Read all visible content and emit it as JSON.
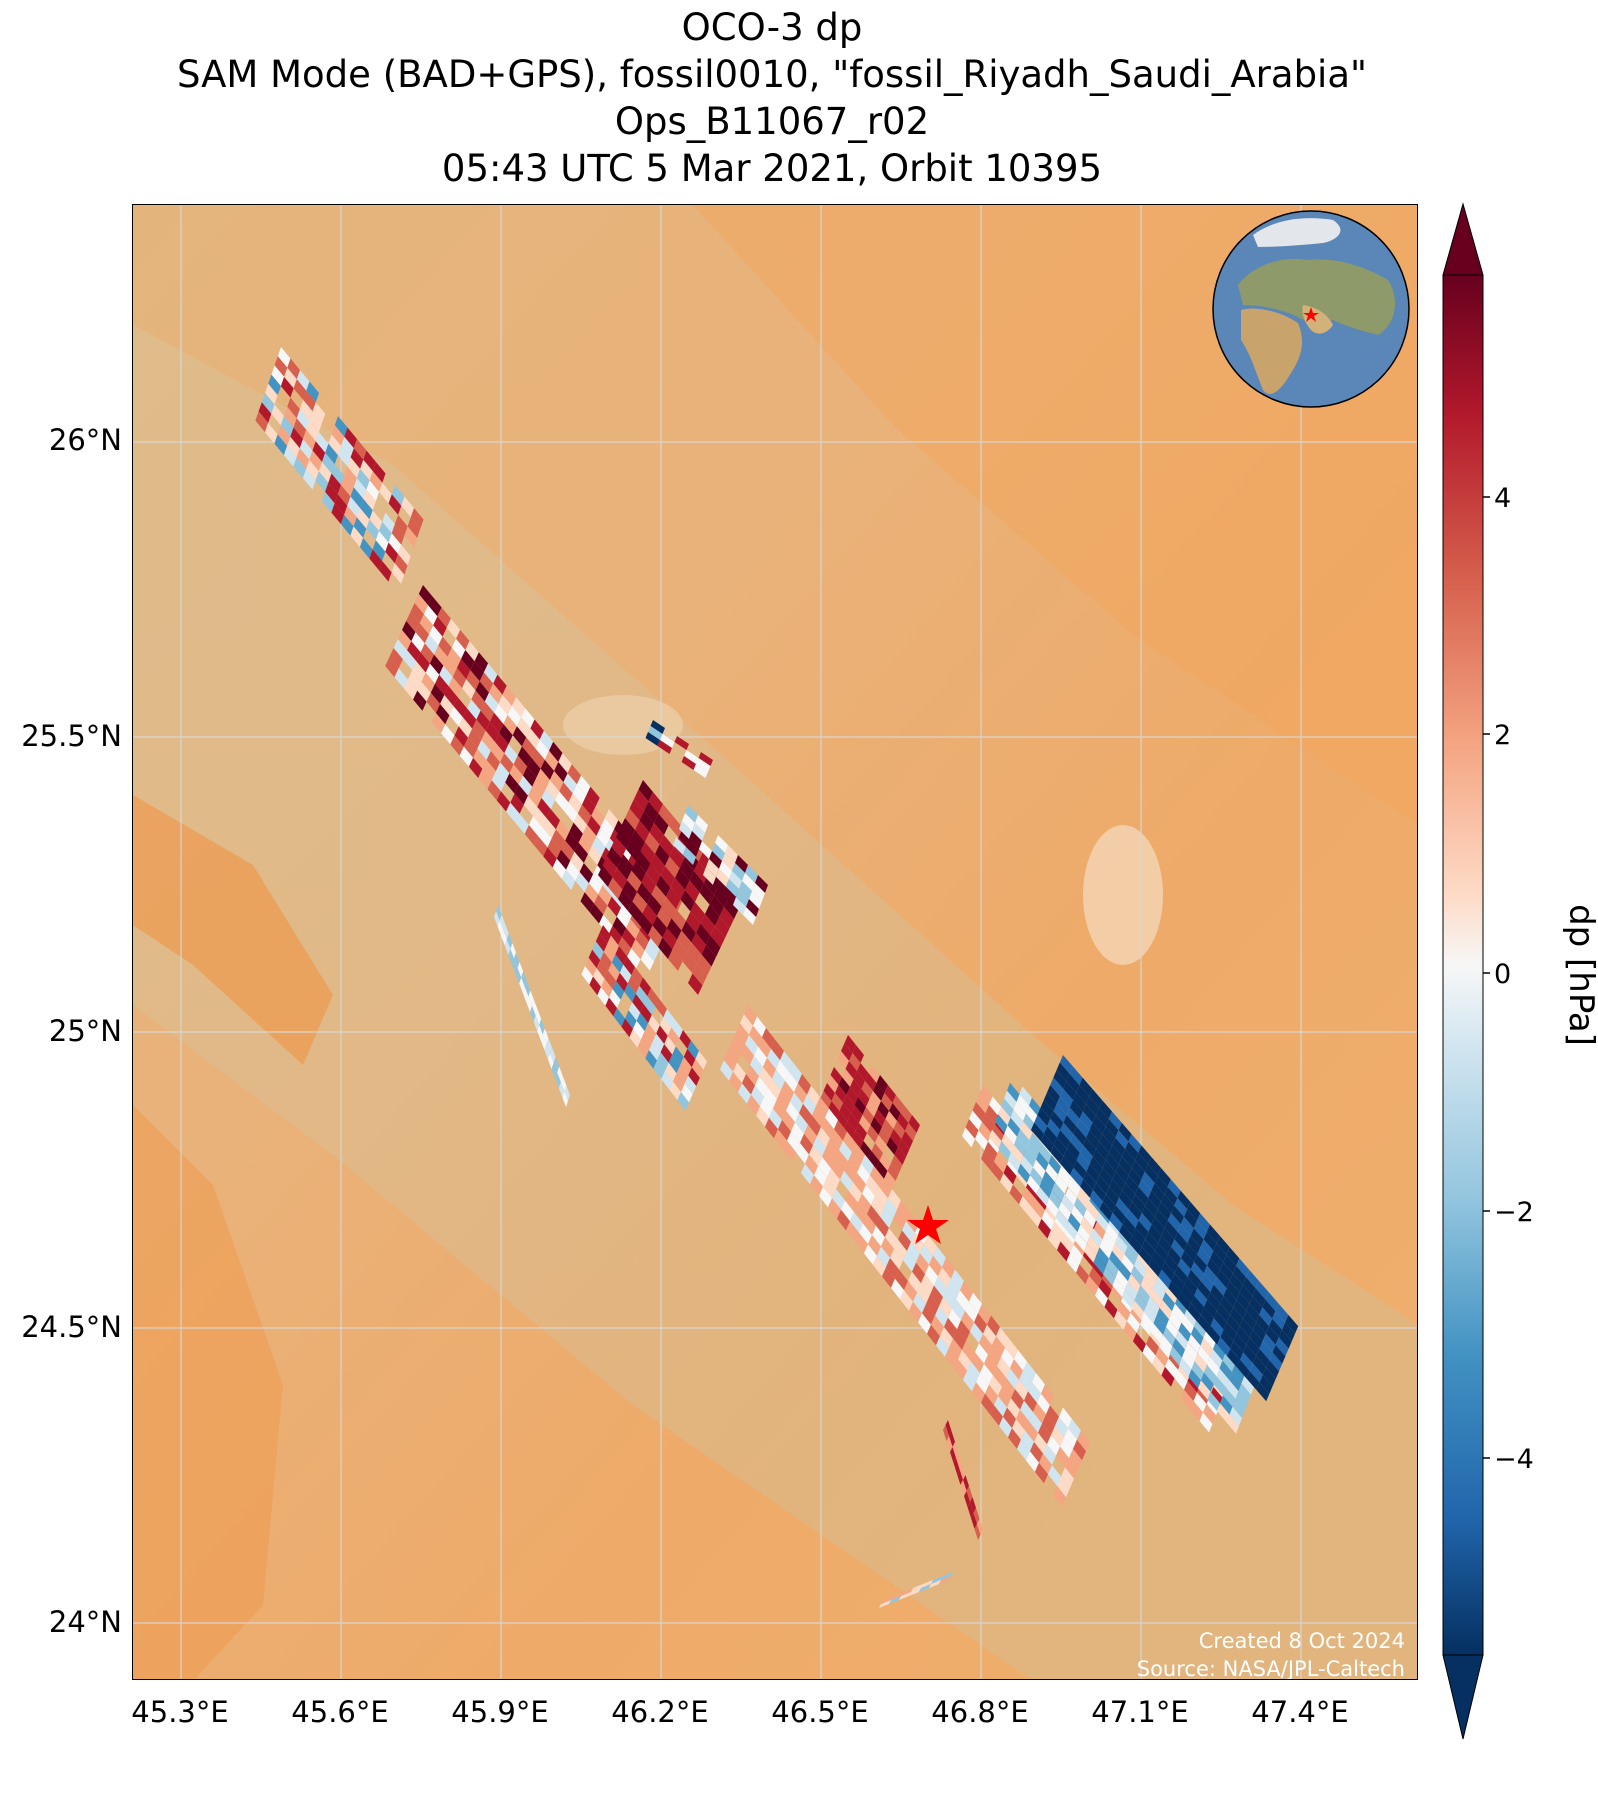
{
  "title": {
    "line1": "OCO-3 dp",
    "line2": "SAM Mode (BAD+GPS), fossil0010, \"fossil_Riyadh_Saudi_Arabia\"",
    "line3": "Ops_B11067_r02",
    "line4": "05:43 UTC 5 Mar 2021, Orbit 10395"
  },
  "map": {
    "lat_ticks": [
      "26°N",
      "25.5°N",
      "25°N",
      "24.5°N",
      "24°N"
    ],
    "lon_ticks": [
      "45.3°E",
      "45.6°E",
      "45.9°E",
      "46.2°E",
      "46.5°E",
      "46.8°E",
      "47.1°E",
      "47.4°E"
    ],
    "target_marker": "red-star",
    "inset": "globe-locator"
  },
  "colorbar": {
    "label": "dp [hPa]",
    "ticks": [
      "4",
      "2",
      "0",
      "−2",
      "−4"
    ],
    "colormap": [
      "#67001f",
      "#b2182b",
      "#d6604d",
      "#f4a582",
      "#fddbc7",
      "#f7f7f7",
      "#d1e5f0",
      "#92c5de",
      "#4393c3",
      "#2166ac",
      "#053061"
    ]
  },
  "credits": {
    "created": "Created 8 Oct 2024",
    "source": "Source: NASA/JPL-Caltech"
  },
  "colors": {
    "desert": "#ebb073",
    "gridline": "#d9d9d9",
    "star": "#ff0000"
  }
}
